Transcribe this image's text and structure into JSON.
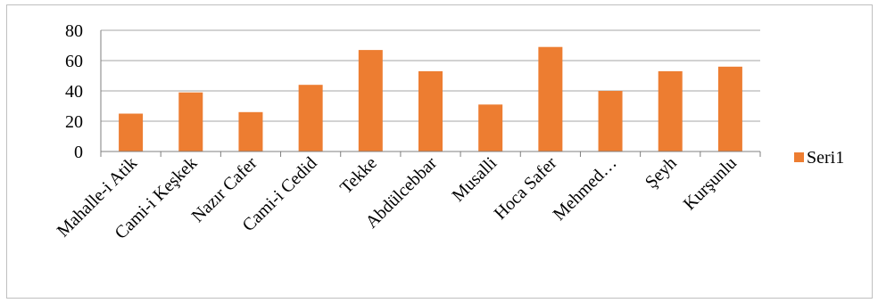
{
  "chart_data": {
    "type": "bar",
    "categories": [
      "Mahalle-i Atik",
      "Cami-i Keşkek",
      "Nazır Cafer",
      "Cami-i Cedid",
      "Tekke",
      "Abdülcebbar",
      "Musalli",
      "Hoca Safer",
      "Mehmed…",
      "Şeyh",
      "Kurşunlu"
    ],
    "series": [
      {
        "name": "Seri1",
        "values": [
          25,
          39,
          26,
          44,
          67,
          53,
          31,
          69,
          40,
          53,
          56
        ]
      }
    ],
    "ylim": [
      0,
      80
    ],
    "yticks": [
      0,
      20,
      40,
      60,
      80
    ],
    "grid": true,
    "legend_position": "right",
    "title": "",
    "xlabel": "",
    "ylabel": "",
    "colors": {
      "bar": "#ED7D31",
      "grid": "#a6a6a6",
      "axis": "#7f7f7f"
    }
  }
}
